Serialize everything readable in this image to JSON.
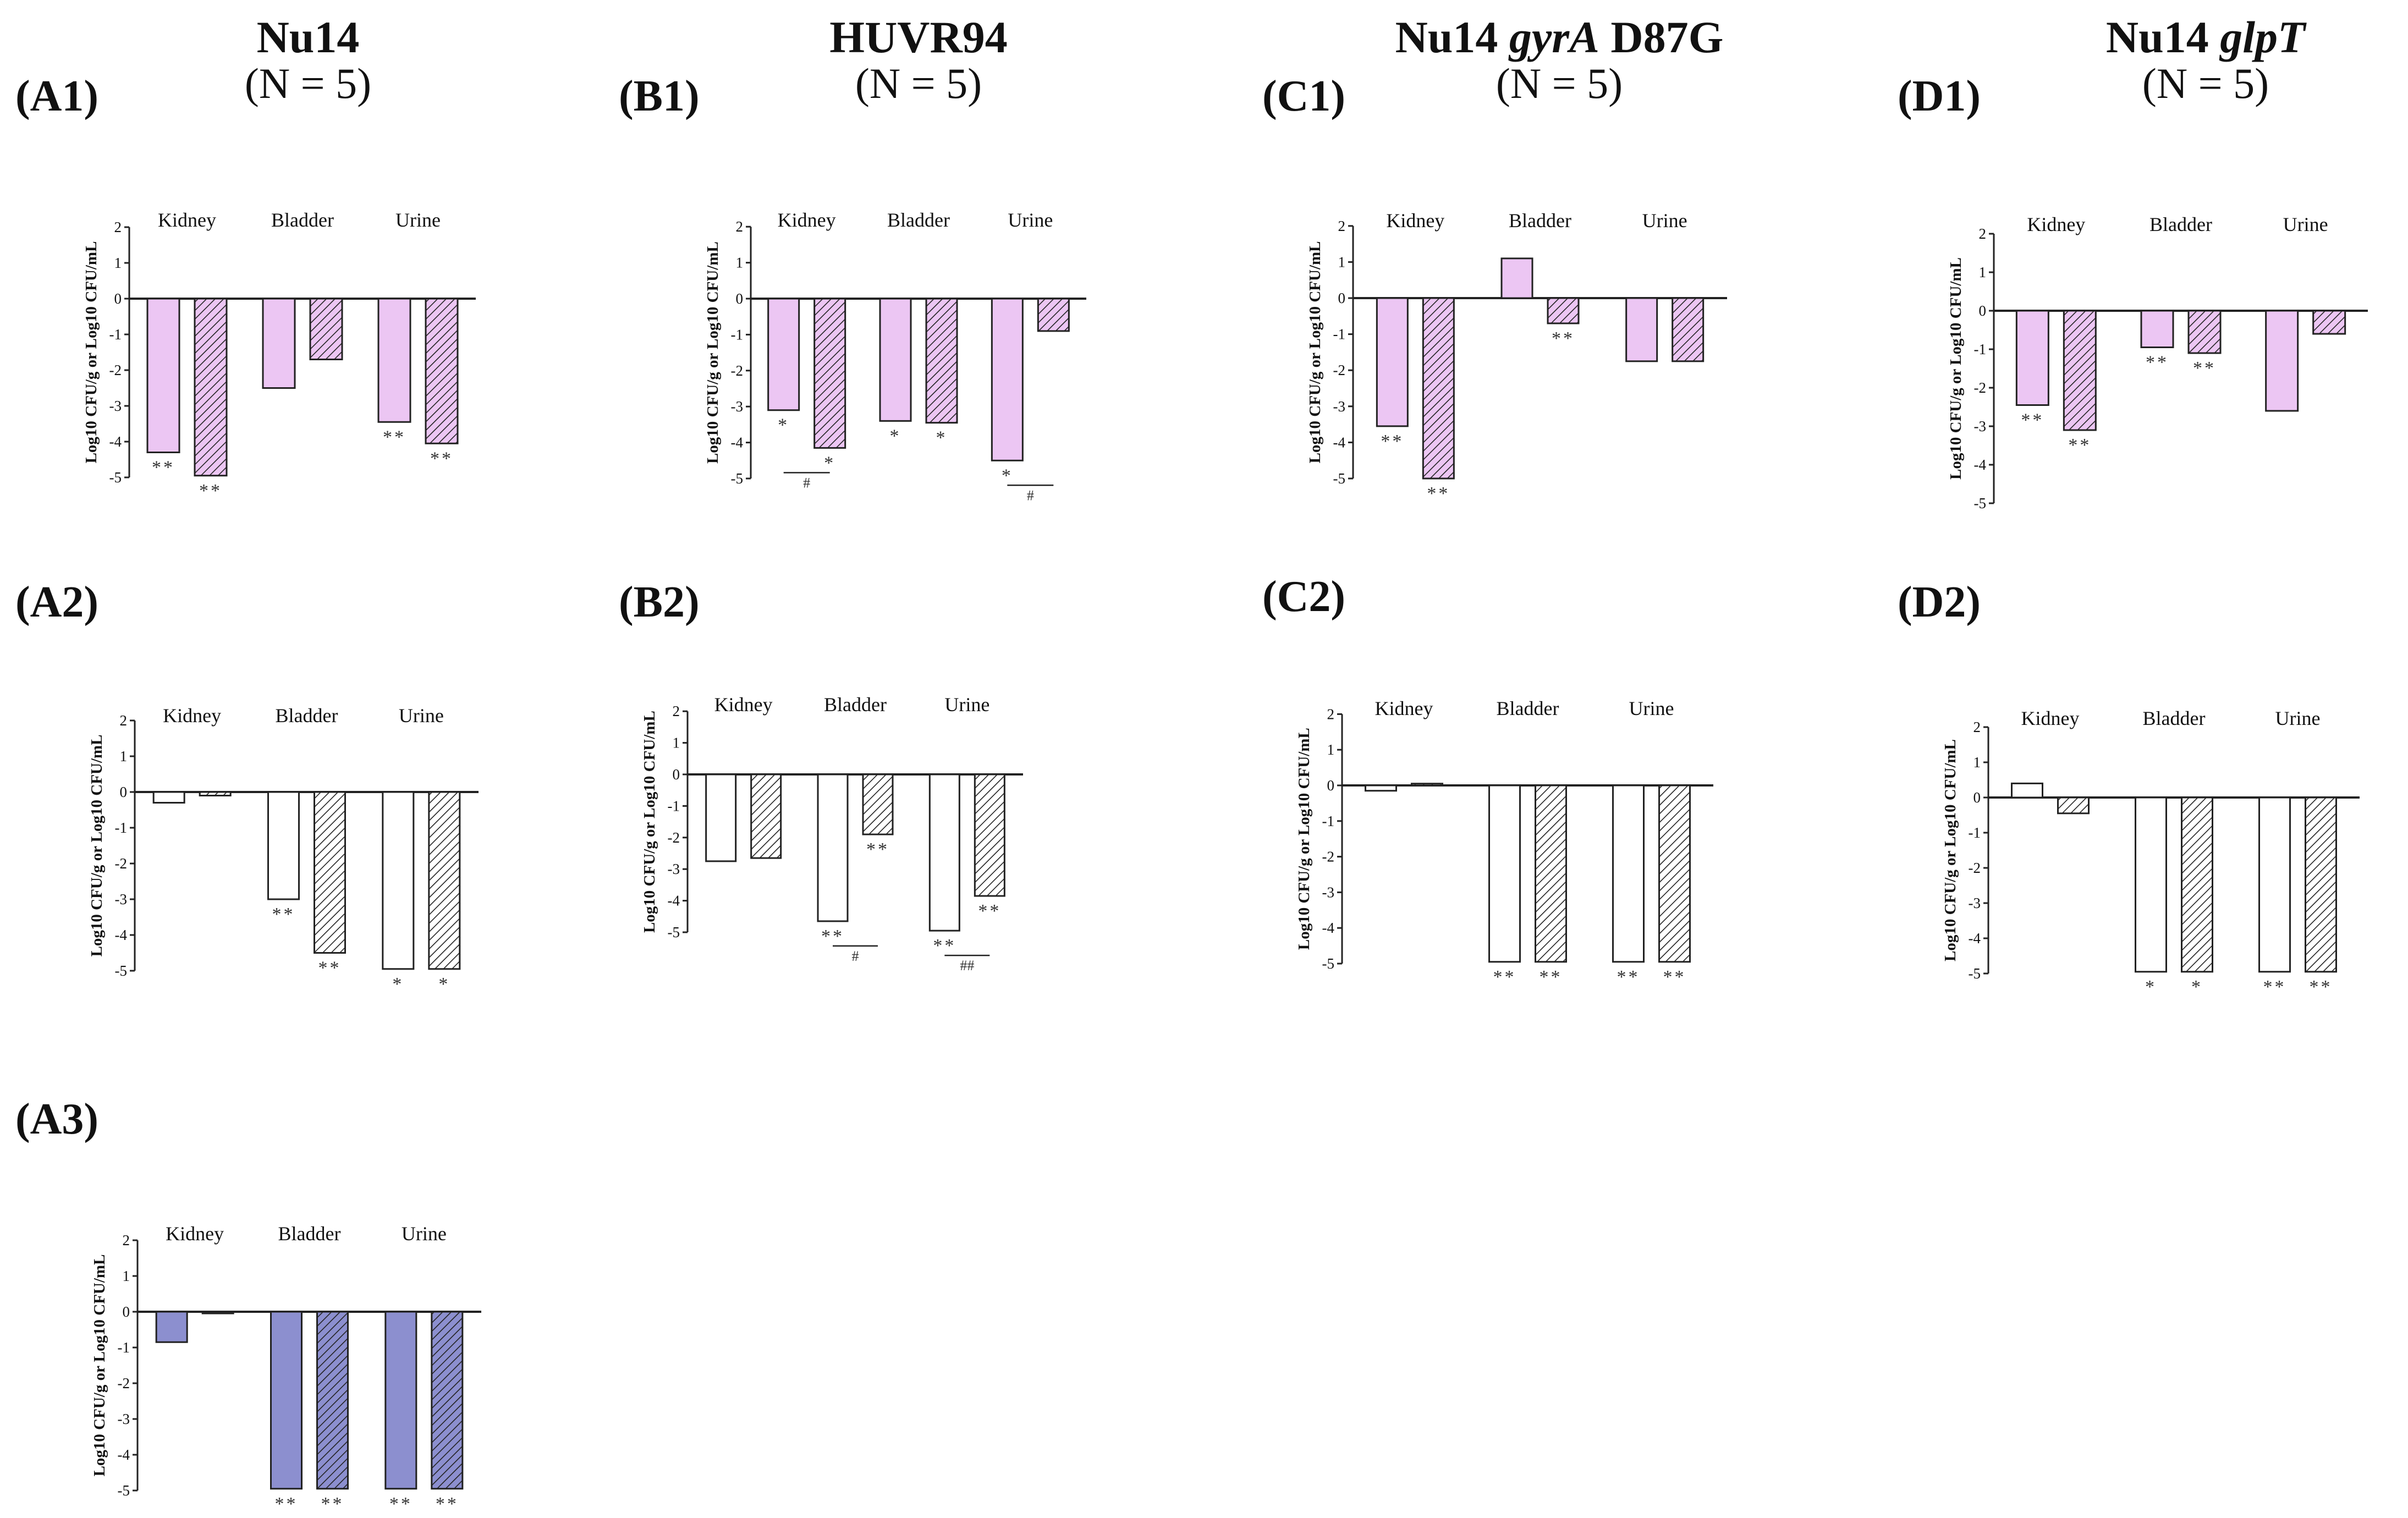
{
  "colors": {
    "pink": "#ecc6f3",
    "white": "#ffffff",
    "blue": "#8c8fcf",
    "stroke": "#222222"
  },
  "columns": [
    {
      "title": "Nu14",
      "title_italic": "",
      "title_suffix": "",
      "n": "(N = 5)"
    },
    {
      "title": "HUVR94",
      "title_italic": "",
      "title_suffix": "",
      "n": "(N = 5)"
    },
    {
      "title": "Nu14 ",
      "title_italic": "gyrA",
      "title_suffix": " D87G",
      "n": "(N = 5)"
    },
    {
      "title": "Nu14 ",
      "title_italic": "glpT",
      "title_suffix": "",
      "n": "(N = 5)"
    }
  ],
  "panel_labels": {
    "A1": "(A1)",
    "A2": "(A2)",
    "A3": "(A3)",
    "B1": "(B1)",
    "B2": "(B2)",
    "C1": "(C1)",
    "C2": "(C2)",
    "D1": "(D1)",
    "D2": "(D2)"
  },
  "chart_data": [
    {
      "id": "A1",
      "type": "bar",
      "fill": "pink",
      "categories": [
        "Kidney",
        "Bladder",
        "Urine"
      ],
      "ylabel": "Log10 CFU/g or Log10 CFU/mL",
      "yticks": [
        "2",
        "1",
        "0",
        "-1",
        "-2",
        "-3",
        "-4",
        "-5"
      ],
      "ylim": [
        -5,
        2
      ],
      "series": [
        {
          "name": "plain",
          "values": [
            -4.3,
            -2.5,
            -3.45
          ]
        },
        {
          "name": "hatched",
          "values": [
            -4.95,
            -1.7,
            -4.05
          ]
        }
      ],
      "annotations": [
        {
          "cat": 0,
          "series": 0,
          "text": "**"
        },
        {
          "cat": 0,
          "series": 1,
          "text": "**"
        },
        {
          "cat": 2,
          "series": 0,
          "text": "**"
        },
        {
          "cat": 2,
          "series": 1,
          "text": "**"
        }
      ],
      "brackets": []
    },
    {
      "id": "A2",
      "type": "bar",
      "fill": "white",
      "categories": [
        "Kidney",
        "Bladder",
        "Urine"
      ],
      "ylabel": "Log10 CFU/g or Log10 CFU/mL",
      "yticks": [
        "2",
        "1",
        "0",
        "-1",
        "-2",
        "-3",
        "-4",
        "-5"
      ],
      "ylim": [
        -5,
        2
      ],
      "series": [
        {
          "name": "plain",
          "values": [
            -0.3,
            -3.0,
            -4.95
          ]
        },
        {
          "name": "hatched",
          "values": [
            -0.1,
            -4.5,
            -4.95
          ]
        }
      ],
      "annotations": [
        {
          "cat": 1,
          "series": 0,
          "text": "**"
        },
        {
          "cat": 1,
          "series": 1,
          "text": "**"
        },
        {
          "cat": 2,
          "series": 0,
          "text": "*"
        },
        {
          "cat": 2,
          "series": 1,
          "text": "*"
        }
      ],
      "brackets": []
    },
    {
      "id": "A3",
      "type": "bar",
      "fill": "blue",
      "categories": [
        "Kidney",
        "Bladder",
        "Urine"
      ],
      "ylabel": "Log10 CFU/g or Log10 CFU/mL",
      "yticks": [
        "2",
        "1",
        "0",
        "-1",
        "-2",
        "-3",
        "-4",
        "-5"
      ],
      "ylim": [
        -5,
        2
      ],
      "series": [
        {
          "name": "plain",
          "values": [
            -0.85,
            -4.95,
            -4.95
          ]
        },
        {
          "name": "hatched",
          "values": [
            0,
            -4.95,
            -4.95
          ]
        }
      ],
      "annotations": [
        {
          "cat": 1,
          "series": 0,
          "text": "**"
        },
        {
          "cat": 1,
          "series": 1,
          "text": "**"
        },
        {
          "cat": 2,
          "series": 0,
          "text": "**"
        },
        {
          "cat": 2,
          "series": 1,
          "text": "**"
        }
      ],
      "brackets": []
    },
    {
      "id": "B1",
      "type": "bar",
      "fill": "pink",
      "categories": [
        "Kidney",
        "Bladder",
        "Urine"
      ],
      "ylabel": "Log10 CFU/g or Log10 CFU/mL",
      "yticks": [
        "2",
        "1",
        "0",
        "-1",
        "-2",
        "-3",
        "-4",
        "-5"
      ],
      "ylim": [
        -5,
        2
      ],
      "series": [
        {
          "name": "plain",
          "values": [
            -3.1,
            -3.4,
            -4.5
          ]
        },
        {
          "name": "hatched",
          "values": [
            -4.15,
            -3.45,
            -0.9
          ]
        }
      ],
      "annotations": [
        {
          "cat": 0,
          "series": 0,
          "text": "*"
        },
        {
          "cat": 0,
          "series": 1,
          "text": "*"
        },
        {
          "cat": 1,
          "series": 0,
          "text": "*"
        },
        {
          "cat": 1,
          "series": 1,
          "text": "*"
        },
        {
          "cat": 2,
          "series": 0,
          "text": "*"
        }
      ],
      "brackets": [
        {
          "cat": 0,
          "text": "#"
        },
        {
          "cat": 2,
          "text": "#"
        }
      ]
    },
    {
      "id": "B2",
      "type": "bar",
      "fill": "white",
      "categories": [
        "Kidney",
        "Bladder",
        "Urine"
      ],
      "ylabel": "Log10 CFU/g or Log10 CFU/mL",
      "yticks": [
        "2",
        "1",
        "0",
        "-1",
        "-2",
        "-3",
        "-4",
        "-5"
      ],
      "ylim": [
        -5,
        2
      ],
      "series": [
        {
          "name": "plain",
          "values": [
            -2.75,
            -4.65,
            -4.95
          ]
        },
        {
          "name": "hatched",
          "values": [
            -2.65,
            -1.9,
            -3.85
          ]
        }
      ],
      "annotations": [
        {
          "cat": 1,
          "series": 0,
          "text": "**"
        },
        {
          "cat": 1,
          "series": 1,
          "text": "**"
        },
        {
          "cat": 2,
          "series": 0,
          "text": "**"
        },
        {
          "cat": 2,
          "series": 1,
          "text": "**"
        }
      ],
      "brackets": [
        {
          "cat": 1,
          "text": "#"
        },
        {
          "cat": 2,
          "text": "##"
        }
      ]
    },
    {
      "id": "C1",
      "type": "bar",
      "fill": "pink",
      "categories": [
        "Kidney",
        "Bladder",
        "Urine"
      ],
      "ylabel": "Log10 CFU/g or Log10 CFU/mL",
      "yticks": [
        "2",
        "1",
        "0",
        "-1",
        "-2",
        "-3",
        "-4",
        "-5"
      ],
      "ylim": [
        -5,
        2
      ],
      "series": [
        {
          "name": "plain",
          "values": [
            -3.55,
            1.1,
            -1.75
          ]
        },
        {
          "name": "hatched",
          "values": [
            -5.0,
            -0.7,
            -1.75
          ]
        }
      ],
      "annotations": [
        {
          "cat": 0,
          "series": 0,
          "text": "**"
        },
        {
          "cat": 0,
          "series": 1,
          "text": "**"
        },
        {
          "cat": 1,
          "series": 1,
          "text": "**"
        }
      ],
      "brackets": []
    },
    {
      "id": "C2",
      "type": "bar",
      "fill": "white",
      "categories": [
        "Kidney",
        "Bladder",
        "Urine"
      ],
      "ylabel": "Log10 CFU/g or Log10 CFU/mL",
      "yticks": [
        "2",
        "1",
        "0",
        "-1",
        "-2",
        "-3",
        "-4",
        "-5"
      ],
      "ylim": [
        -5,
        2
      ],
      "series": [
        {
          "name": "plain",
          "values": [
            -0.15,
            -4.95,
            -4.95
          ]
        },
        {
          "name": "hatched",
          "values": [
            0.05,
            -4.95,
            -4.95
          ]
        }
      ],
      "annotations": [
        {
          "cat": 1,
          "series": 0,
          "text": "**"
        },
        {
          "cat": 1,
          "series": 1,
          "text": "**"
        },
        {
          "cat": 2,
          "series": 0,
          "text": "**"
        },
        {
          "cat": 2,
          "series": 1,
          "text": "**"
        }
      ],
      "brackets": []
    },
    {
      "id": "D1",
      "type": "bar",
      "fill": "pink",
      "categories": [
        "Kidney",
        "Bladder",
        "Urine"
      ],
      "ylabel": "Log10 CFU/g or Log10 CFU/mL",
      "yticks": [
        "2",
        "1",
        "0",
        "-1",
        "-2",
        "-3",
        "-4",
        "-5"
      ],
      "ylim": [
        -5,
        2
      ],
      "series": [
        {
          "name": "plain",
          "values": [
            -2.45,
            -0.95,
            -2.6
          ]
        },
        {
          "name": "hatched",
          "values": [
            -3.1,
            -1.1,
            -0.6
          ]
        }
      ],
      "annotations": [
        {
          "cat": 0,
          "series": 0,
          "text": "**"
        },
        {
          "cat": 0,
          "series": 1,
          "text": "**"
        },
        {
          "cat": 1,
          "series": 0,
          "text": "**"
        },
        {
          "cat": 1,
          "series": 1,
          "text": "**"
        }
      ],
      "brackets": []
    },
    {
      "id": "D2",
      "type": "bar",
      "fill": "white",
      "categories": [
        "Kidney",
        "Bladder",
        "Urine"
      ],
      "ylabel": "Log10 CFU/g or Log10 CFU/mL",
      "yticks": [
        "2",
        "1",
        "0",
        "-1",
        "-2",
        "-3",
        "-4",
        "-5"
      ],
      "ylim": [
        -5,
        2
      ],
      "series": [
        {
          "name": "plain",
          "values": [
            0.4,
            -4.95,
            -4.95
          ]
        },
        {
          "name": "hatched",
          "values": [
            -0.45,
            -4.95,
            -4.95
          ]
        }
      ],
      "annotations": [
        {
          "cat": 1,
          "series": 0,
          "text": "*"
        },
        {
          "cat": 1,
          "series": 1,
          "text": "*"
        },
        {
          "cat": 2,
          "series": 0,
          "text": "**"
        },
        {
          "cat": 2,
          "series": 1,
          "text": "**"
        }
      ],
      "brackets": []
    }
  ]
}
